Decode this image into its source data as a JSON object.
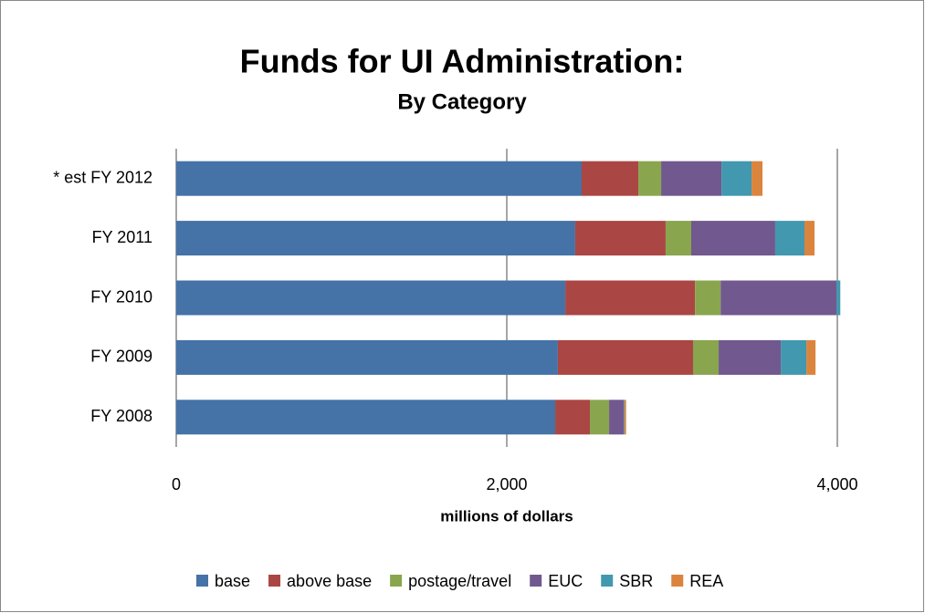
{
  "chart_data": {
    "type": "stacked-bar-horizontal",
    "title": "Funds for UI Administration:",
    "subtitle": "By Category",
    "x_label": "millions of dollars",
    "categories": [
      "FY 2008",
      "FY 2009",
      "FY 2010",
      "FY 2011",
      "* est FY 2012"
    ],
    "series": [
      {
        "name": "base",
        "color": "#4572a7",
        "values": [
          2293,
          2309,
          2354,
          2414,
          2453
        ]
      },
      {
        "name": "above base",
        "color": "#aa4643",
        "values": [
          210,
          818,
          785,
          547,
          343
        ]
      },
      {
        "name": "postage/travel",
        "color": "#89a54e",
        "values": [
          116,
          155,
          155,
          155,
          138
        ]
      },
      {
        "name": "EUC",
        "color": "#71588f",
        "values": [
          88,
          376,
          702,
          508,
          365
        ]
      },
      {
        "name": "SBR",
        "color": "#4198af",
        "values": [
          5,
          155,
          22,
          177,
          182
        ]
      },
      {
        "name": "REA",
        "color": "#db843d",
        "values": [
          10,
          55,
          0,
          61,
          66
        ]
      }
    ],
    "xlim": [
      0,
      4000
    ],
    "xticks": [
      0,
      {
        "value": 2000,
        "label": "2,000"
      },
      {
        "value": 4000,
        "label": "4,000"
      }
    ],
    "grid": true,
    "legend": "bottom"
  }
}
